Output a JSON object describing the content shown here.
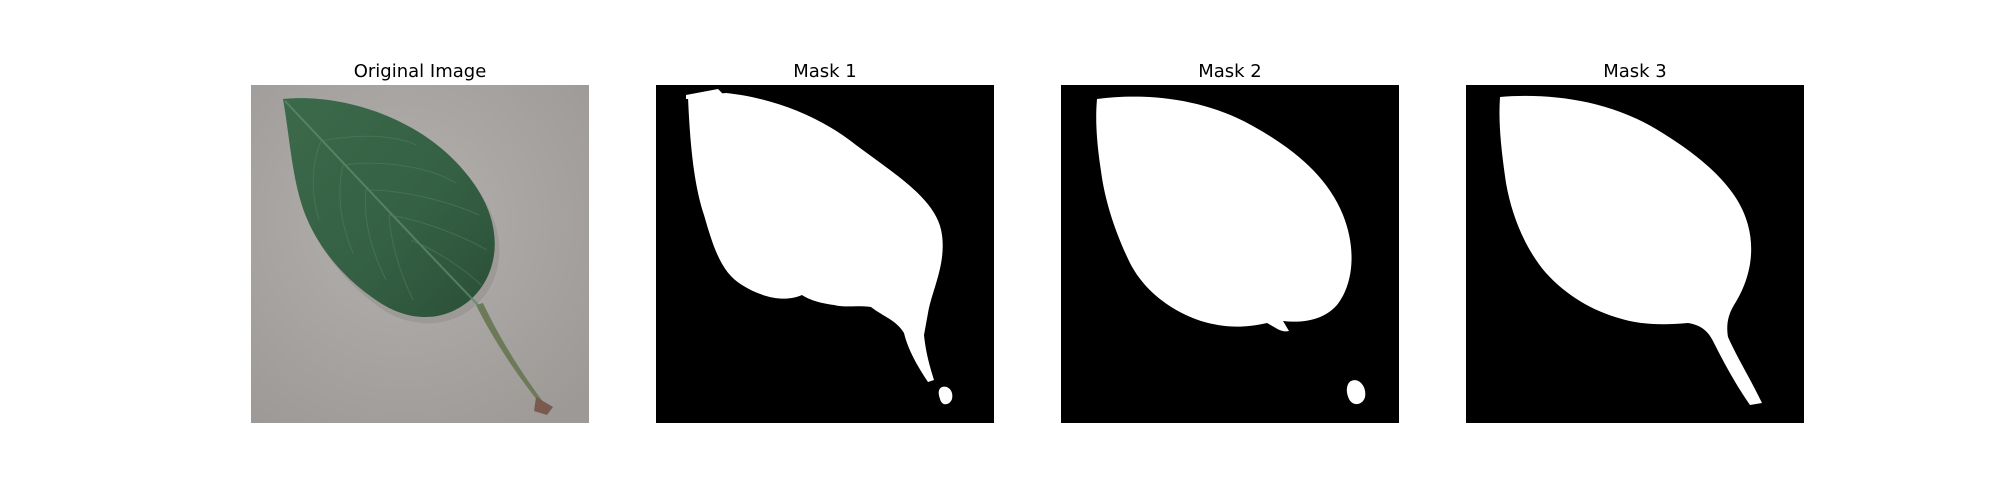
{
  "figure": {
    "panels": [
      {
        "title": "Original Image"
      },
      {
        "title": "Mask 1"
      },
      {
        "title": "Mask 2"
      },
      {
        "title": "Mask 3"
      }
    ]
  },
  "colors": {
    "background": "#ffffff",
    "paper_surface": "#a9a6a3",
    "leaf": "#3f6f4b",
    "leaf_dark": "#2f5a3c",
    "stem": "#6f7a55",
    "mask_background": "#000000",
    "mask_foreground": "#ffffff"
  }
}
